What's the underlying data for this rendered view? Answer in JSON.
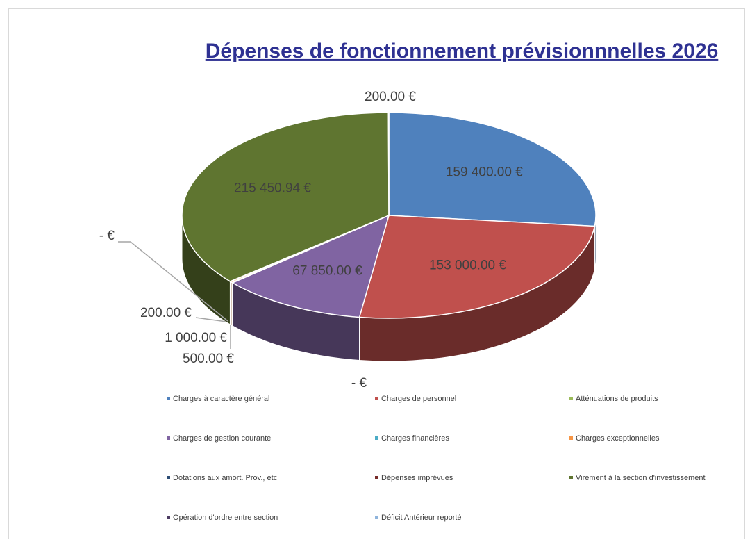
{
  "chart_data": {
    "type": "pie3d",
    "title": "Dépenses de fonctionnement prévisionnnelles 2026",
    "categories": [
      "Charges à caractère général",
      "Charges de personnel",
      "Atténuations de produits",
      "Charges de gestion courante",
      "Charges financières",
      "Charges exceptionnelles",
      "Dotations aux amort. Prov., etc",
      "Dépenses imprévues",
      "Virement à la section d'investissement",
      "Opération d'ordre entre section",
      "Déficit Antérieur reporté"
    ],
    "values": [
      159400,
      153000,
      0,
      67850,
      500,
      1000,
      200,
      0,
      215450.94,
      200,
      null
    ],
    "value_labels": [
      "159 400.00 €",
      "153 000.00 €",
      "- €",
      "67 850.00 €",
      "500.00 €",
      "1 000.00 €",
      "200.00 €",
      "- €",
      "215 450.94 €",
      "200.00 €",
      null
    ],
    "colors": [
      "#4f81bd",
      "#c0504d",
      "#9bbb59",
      "#8064a2",
      "#4bacc6",
      "#f79646",
      "#2c4d75",
      "#772c2a",
      "#5f7530",
      "#4d3b62",
      "#8fb4dc"
    ],
    "legend": "bottom"
  }
}
